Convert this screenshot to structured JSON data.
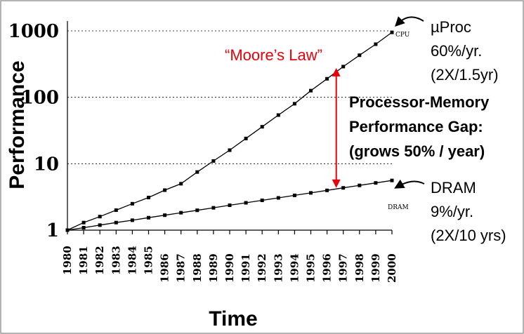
{
  "chart_data": {
    "type": "line",
    "xlabel": "Time",
    "ylabel": "Performance",
    "y_scale": "log",
    "ylim": [
      1,
      1000
    ],
    "yticks": [
      "1",
      "10",
      "100",
      "1000"
    ],
    "categories": [
      "1980",
      "1981",
      "1982",
      "1983",
      "1984",
      "1985",
      "1986",
      "1987",
      "1988",
      "1989",
      "1990",
      "1991",
      "1992",
      "1993",
      "1994",
      "1995",
      "1996",
      "1997",
      "1998",
      "1999",
      "2000"
    ],
    "grid": "dotted horizontal at 10, 100, 1000",
    "series": [
      {
        "name": "CPU",
        "values": [
          1,
          1.3,
          1.6,
          2.0,
          2.5,
          3.1,
          4.0,
          5.0,
          7.5,
          11,
          16,
          24,
          36,
          54,
          80,
          126,
          190,
          290,
          430,
          630,
          950
        ]
      },
      {
        "name": "DRAM",
        "values": [
          1,
          1.09,
          1.19,
          1.3,
          1.41,
          1.54,
          1.68,
          1.83,
          1.99,
          2.17,
          2.37,
          2.58,
          2.81,
          3.06,
          3.34,
          3.64,
          3.97,
          4.33,
          4.72,
          5.14,
          5.6
        ]
      }
    ],
    "annotations": {
      "moores_law": "“Moore’s Law”",
      "gap_lines": [
        "Processor-Memory",
        "Performance Gap:",
        "(grows 50% / year)"
      ],
      "cpu_lines": [
        "µProc",
        "60%/yr.",
        "(2X/1.5yr)"
      ],
      "dram_lines": [
        "DRAM",
        "9%/yr.",
        "(2X/10 yrs)"
      ]
    },
    "colors": {
      "annotation_red": "#e8000b",
      "lines": "#000000"
    }
  }
}
